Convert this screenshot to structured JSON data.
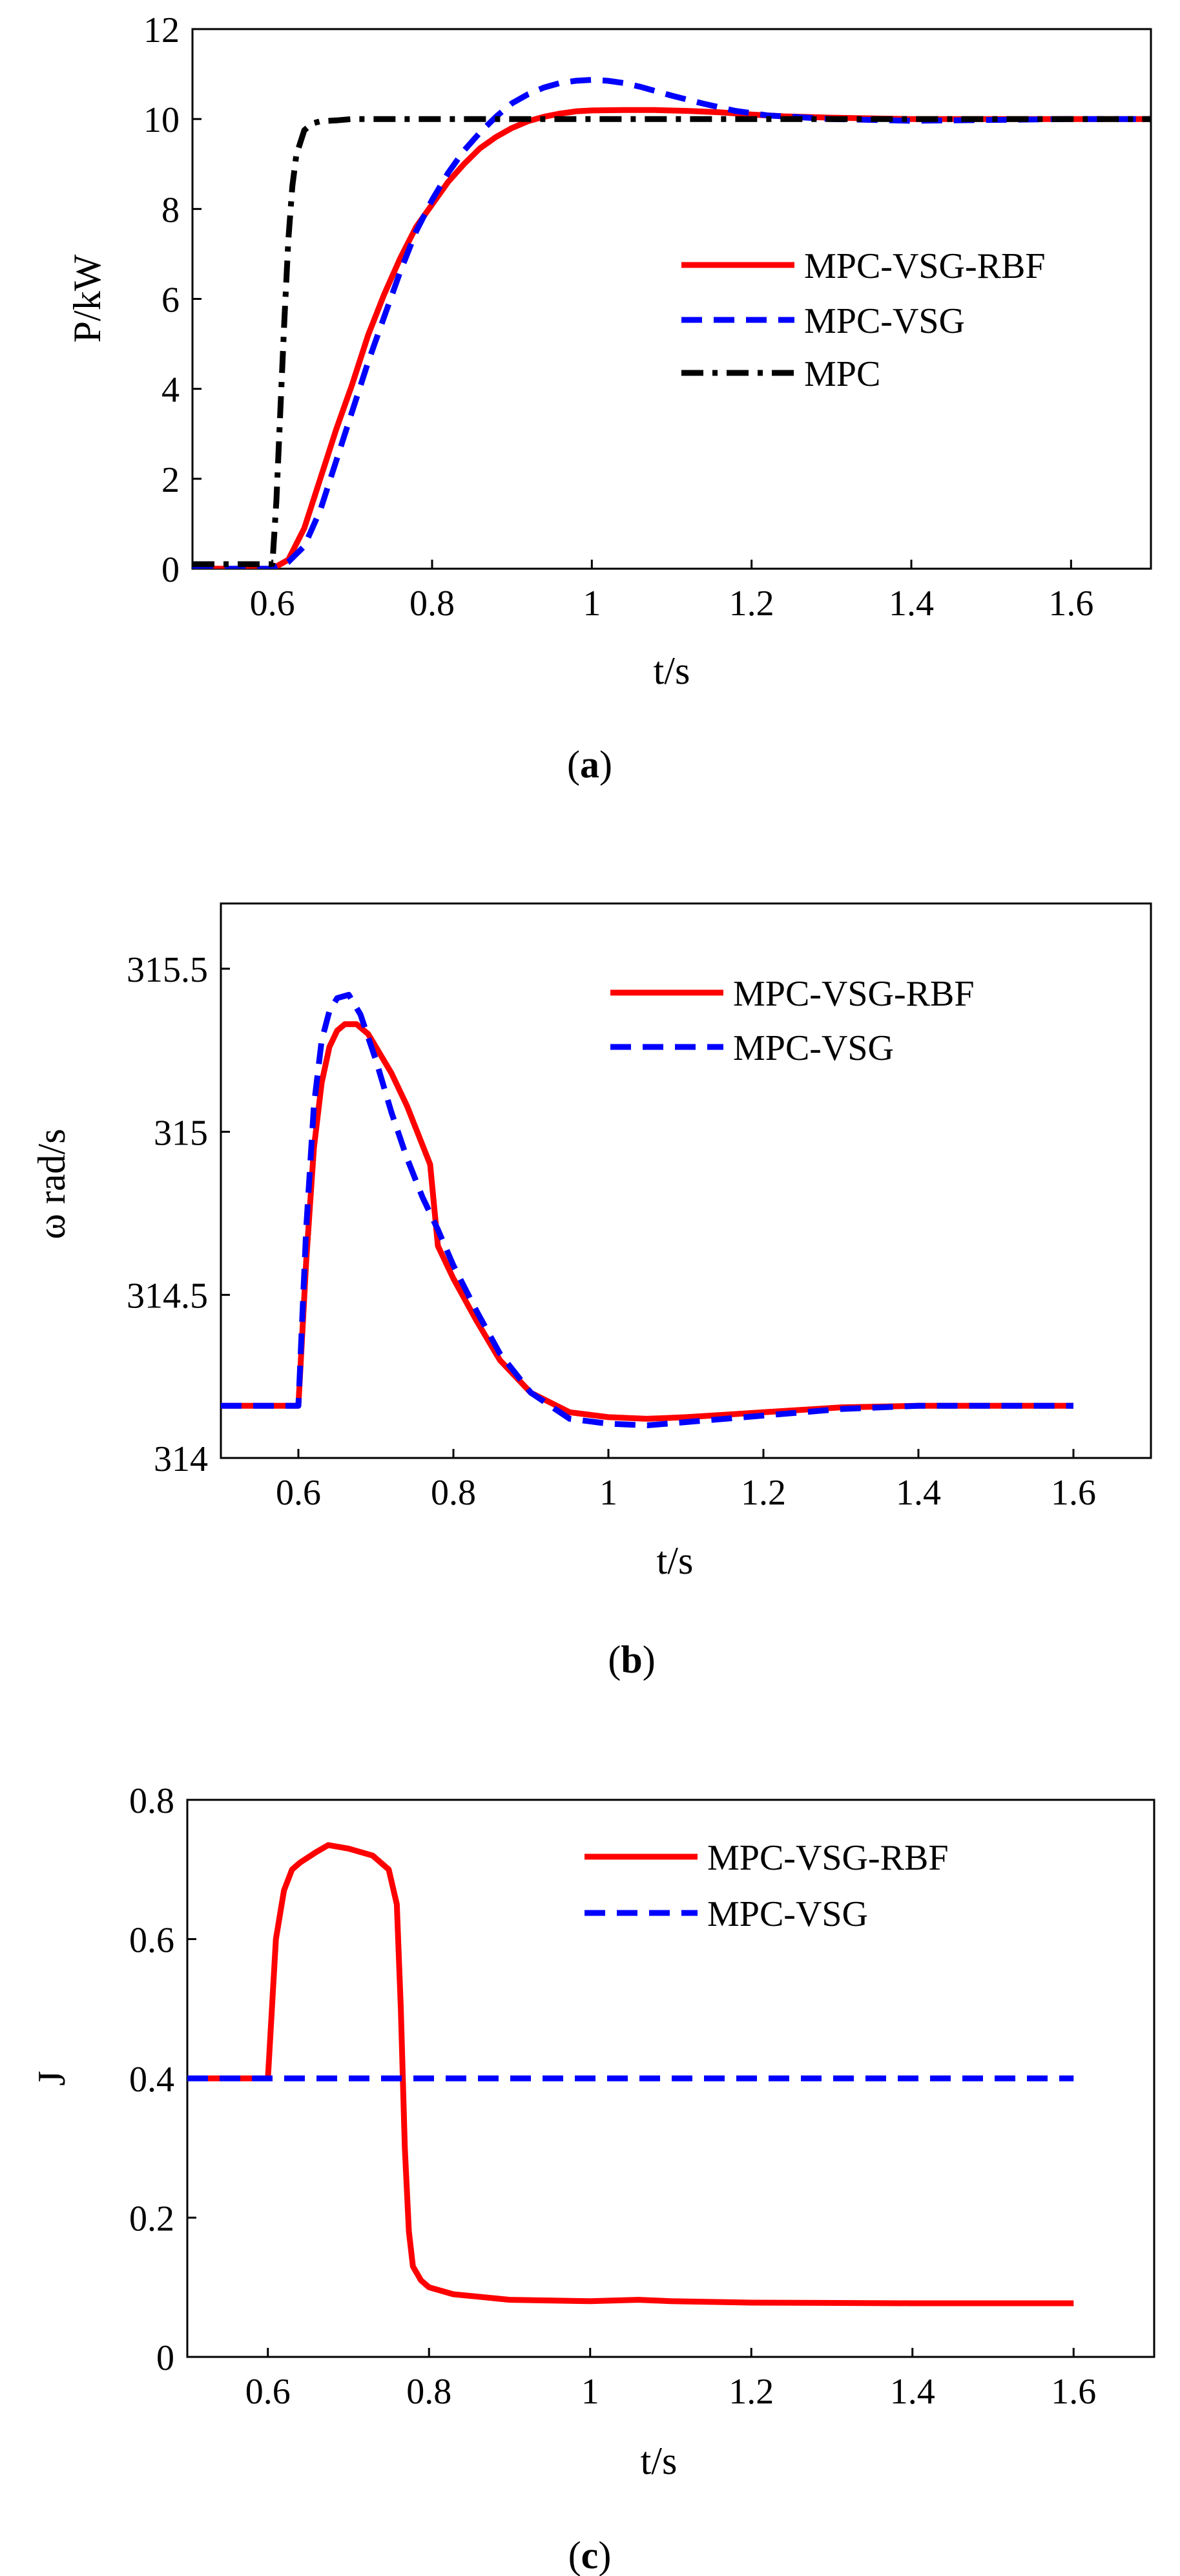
{
  "chart_data": [
    {
      "panel": "a",
      "type": "line",
      "caption_letter": "a",
      "xlabel": "t/s",
      "ylabel": "P/kW",
      "xlim": [
        0.5,
        1.7
      ],
      "ylim": [
        0,
        12
      ],
      "xticks": [
        0.6,
        0.8,
        1,
        1.2,
        1.4,
        1.6
      ],
      "xtick_labels": [
        "0.6",
        "0.8",
        "1",
        "1.2",
        "1.4",
        "1.6"
      ],
      "yticks": [
        0,
        2,
        4,
        6,
        8,
        10,
        12
      ],
      "ytick_labels": [
        "0",
        "2",
        "4",
        "6",
        "8",
        "10",
        "12"
      ],
      "legend_position": "right-center",
      "series": [
        {
          "name": "MPC-VSG-RBF",
          "color": "#ff0000",
          "dash": "solid",
          "x": [
            0.5,
            0.6,
            0.62,
            0.64,
            0.66,
            0.68,
            0.7,
            0.72,
            0.74,
            0.76,
            0.78,
            0.8,
            0.82,
            0.84,
            0.86,
            0.88,
            0.9,
            0.92,
            0.94,
            0.96,
            0.98,
            1.0,
            1.04,
            1.08,
            1.12,
            1.16,
            1.2,
            1.24,
            1.3,
            1.4,
            1.5,
            1.6,
            1.7
          ],
          "y": [
            0,
            0,
            0.2,
            0.9,
            2.0,
            3.1,
            4.1,
            5.2,
            6.1,
            6.9,
            7.6,
            8.1,
            8.6,
            9.0,
            9.35,
            9.6,
            9.8,
            9.95,
            10.05,
            10.12,
            10.17,
            10.19,
            10.2,
            10.2,
            10.18,
            10.15,
            10.1,
            10.06,
            10.03,
            10.0,
            10.0,
            10.0,
            10.0
          ]
        },
        {
          "name": "MPC-VSG",
          "color": "#0000ff",
          "dash": "dashed",
          "x": [
            0.5,
            0.6,
            0.62,
            0.64,
            0.66,
            0.68,
            0.7,
            0.72,
            0.74,
            0.76,
            0.78,
            0.8,
            0.82,
            0.84,
            0.86,
            0.88,
            0.9,
            0.92,
            0.94,
            0.96,
            0.98,
            1.0,
            1.02,
            1.04,
            1.06,
            1.08,
            1.1,
            1.14,
            1.18,
            1.22,
            1.3,
            1.4,
            1.5,
            1.6,
            1.7
          ],
          "y": [
            0,
            0,
            0.15,
            0.5,
            1.3,
            2.4,
            3.5,
            4.6,
            5.6,
            6.6,
            7.5,
            8.2,
            8.8,
            9.3,
            9.7,
            10.05,
            10.35,
            10.55,
            10.7,
            10.8,
            10.85,
            10.87,
            10.85,
            10.8,
            10.72,
            10.62,
            10.52,
            10.34,
            10.18,
            10.08,
            10.0,
            9.96,
            9.98,
            10.0,
            10.0
          ]
        },
        {
          "name": "MPC",
          "color": "#000000",
          "dash": "dashdot",
          "x": [
            0.5,
            0.6,
            0.605,
            0.61,
            0.615,
            0.62,
            0.625,
            0.63,
            0.64,
            0.65,
            0.66,
            0.68,
            0.7,
            1.7
          ],
          "y": [
            0.1,
            0.1,
            1.5,
            3.5,
            5.5,
            7.3,
            8.5,
            9.2,
            9.75,
            9.9,
            9.95,
            9.97,
            10.0,
            10.0
          ]
        }
      ]
    },
    {
      "panel": "b",
      "type": "line",
      "caption_letter": "b",
      "xlabel": "t/s",
      "ylabel": "ω rad/s",
      "xlim": [
        0.5,
        1.7
      ],
      "ylim": [
        314,
        315.7
      ],
      "xticks": [
        0.6,
        0.8,
        1,
        1.2,
        1.4,
        1.6
      ],
      "xtick_labels": [
        "0.6",
        "0.8",
        "1",
        "1.2",
        "1.4",
        "1.6"
      ],
      "yticks": [
        314,
        314.5,
        315,
        315.5
      ],
      "ytick_labels": [
        "314",
        "314.5",
        "315",
        "315.5"
      ],
      "legend_position": "top-right",
      "series": [
        {
          "name": "MPC-VSG-RBF",
          "color": "#ff0000",
          "dash": "solid",
          "x": [
            0.5,
            0.6,
            0.61,
            0.62,
            0.63,
            0.64,
            0.65,
            0.66,
            0.675,
            0.69,
            0.7,
            0.72,
            0.74,
            0.76,
            0.77,
            0.78,
            0.8,
            0.83,
            0.86,
            0.9,
            0.95,
            1.0,
            1.05,
            1.1,
            1.2,
            1.3,
            1.4,
            1.5,
            1.6
          ],
          "y": [
            314.16,
            314.16,
            314.6,
            314.95,
            315.15,
            315.26,
            315.31,
            315.33,
            315.33,
            315.3,
            315.26,
            315.18,
            315.08,
            314.96,
            314.9,
            314.65,
            314.55,
            314.42,
            314.3,
            314.2,
            314.14,
            314.125,
            314.12,
            314.125,
            314.14,
            314.155,
            314.16,
            314.16,
            314.16
          ]
        },
        {
          "name": "MPC-VSG",
          "color": "#0000ff",
          "dash": "dashed",
          "x": [
            0.5,
            0.6,
            0.61,
            0.62,
            0.63,
            0.64,
            0.65,
            0.665,
            0.68,
            0.7,
            0.72,
            0.74,
            0.76,
            0.78,
            0.8,
            0.83,
            0.86,
            0.9,
            0.95,
            1.0,
            1.05,
            1.1,
            1.2,
            1.3,
            1.4,
            1.5,
            1.6
          ],
          "y": [
            314.16,
            314.16,
            314.7,
            315.08,
            315.28,
            315.37,
            315.41,
            315.42,
            315.36,
            315.22,
            315.06,
            314.92,
            314.8,
            314.7,
            314.59,
            314.45,
            314.32,
            314.2,
            314.12,
            314.105,
            314.1,
            314.11,
            314.13,
            314.15,
            314.16,
            314.16,
            314.16
          ]
        }
      ]
    },
    {
      "panel": "c",
      "type": "line",
      "caption_letter": "c",
      "xlabel": "t/s",
      "ylabel": "J",
      "xlim": [
        0.5,
        1.7
      ],
      "ylim": [
        0,
        0.8
      ],
      "xticks": [
        0.6,
        0.8,
        1,
        1.2,
        1.4,
        1.6
      ],
      "xtick_labels": [
        "0.6",
        "0.8",
        "1",
        "1.2",
        "1.4",
        "1.6"
      ],
      "yticks": [
        0,
        0.2,
        0.4,
        0.6,
        0.8
      ],
      "ytick_labels": [
        "0",
        "0.2",
        "0.4",
        "0.6",
        "0.8"
      ],
      "legend_position": "top-right",
      "series": [
        {
          "name": "MPC-VSG-RBF",
          "color": "#ff0000",
          "dash": "solid",
          "x": [
            0.5,
            0.6,
            0.605,
            0.61,
            0.62,
            0.63,
            0.64,
            0.66,
            0.675,
            0.7,
            0.73,
            0.75,
            0.76,
            0.765,
            0.77,
            0.775,
            0.78,
            0.79,
            0.8,
            0.83,
            0.9,
            1.0,
            1.06,
            1.1,
            1.2,
            1.4,
            1.6
          ],
          "y": [
            0.4,
            0.4,
            0.5,
            0.6,
            0.67,
            0.7,
            0.71,
            0.725,
            0.735,
            0.73,
            0.72,
            0.7,
            0.65,
            0.5,
            0.3,
            0.18,
            0.13,
            0.11,
            0.1,
            0.09,
            0.082,
            0.08,
            0.082,
            0.08,
            0.078,
            0.077,
            0.077
          ]
        },
        {
          "name": "MPC-VSG",
          "color": "#0000ff",
          "dash": "dashed",
          "x": [
            0.5,
            1.6
          ],
          "y": [
            0.4,
            0.4
          ]
        }
      ]
    }
  ]
}
